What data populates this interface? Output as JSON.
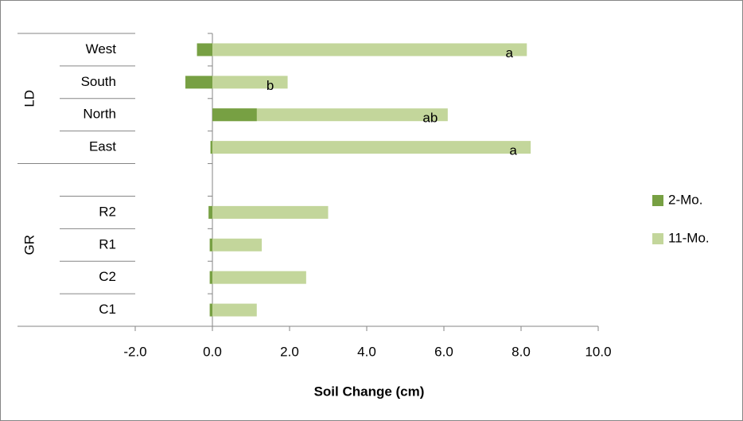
{
  "chart_data": {
    "type": "bar",
    "orientation": "horizontal",
    "overlap": true,
    "x_label": "Soil Change (cm)",
    "categories": [
      "West",
      "South",
      "North",
      "East",
      null,
      "R2",
      "R1",
      "C2",
      "C1"
    ],
    "groups": [
      {
        "name": "LD",
        "count": 4
      },
      {
        "name": "GR",
        "count": 5
      }
    ],
    "series": [
      {
        "name": "2-Mo.",
        "color": "#77a043",
        "values": [
          -0.4,
          -0.7,
          1.15,
          -0.05,
          null,
          -0.1,
          -0.07,
          -0.07,
          -0.07
        ]
      },
      {
        "name": "11-Mo.",
        "color": "#c3d69b",
        "values": [
          8.15,
          1.95,
          6.1,
          8.25,
          null,
          3.0,
          1.28,
          2.43,
          1.15
        ]
      }
    ],
    "annotations": [
      {
        "text": "a",
        "category": "West"
      },
      {
        "text": "b",
        "category": "South"
      },
      {
        "text": "ab",
        "category": "North"
      },
      {
        "text": "a",
        "category": "East"
      }
    ],
    "xlim": [
      -2,
      10
    ],
    "xticks": [
      {
        "value": -2,
        "label": "-2.0"
      },
      {
        "value": 0,
        "label": "0.0"
      },
      {
        "value": 2,
        "label": "2.0"
      },
      {
        "value": 4,
        "label": "4.0"
      },
      {
        "value": 6,
        "label": "6.0"
      },
      {
        "value": 8,
        "label": "8.0"
      },
      {
        "value": 10,
        "label": "10.0"
      }
    ],
    "legend": "right"
  }
}
